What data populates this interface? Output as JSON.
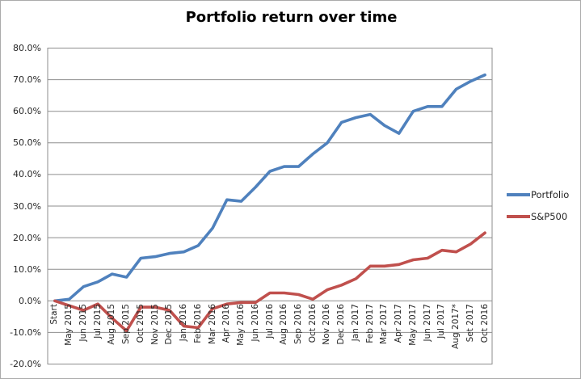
{
  "chart_title": "Portfolio return over time",
  "legend": {
    "items": [
      {
        "label": "Portfolio"
      },
      {
        "label": "S&P500"
      }
    ]
  },
  "chart_data": {
    "type": "line",
    "title": "Portfolio return over time",
    "xlabel": "",
    "ylabel": "",
    "grid": true,
    "legend_position": "right",
    "ylim": [
      -20,
      80
    ],
    "y_tick_step": 10,
    "y_tick_labels": [
      "80.0%",
      "70.0%",
      "60.0%",
      "50.0%",
      "40.0%",
      "30.0%",
      "20.0%",
      "10.0%",
      "0.0%",
      "-10.0%",
      "-20.0%"
    ],
    "y_tick_values": [
      80,
      70,
      60,
      50,
      40,
      30,
      20,
      10,
      0,
      -10,
      -20
    ],
    "categories": [
      "Start",
      "May 2015",
      "Jun 2015",
      "Jul 2015",
      "Aug 2015",
      "Sep 2015",
      "Oct 2015",
      "Nov 2015",
      "Dec 2015",
      "Jan 2016",
      "Feb 2016",
      "Mar 2016",
      "Apr 2016",
      "May 2016",
      "Jun 2016",
      "Jul 2016",
      "Aug 2016",
      "Sep 2016",
      "Oct 2016",
      "Nov 2016",
      "Dec 2016",
      "Jan 2017",
      "Feb 2017",
      "Mar 2017",
      "Apr 2017",
      "May 2017",
      "Jun 2017",
      "Jul 2017",
      "Aug 2017*",
      "Set 2017",
      "Oct 2016"
    ],
    "series": [
      {
        "name": "Portfolio",
        "color": "#4F81BD",
        "values": [
          0,
          0.5,
          4.5,
          6,
          8.5,
          7.5,
          13.5,
          14,
          15,
          15.5,
          17.5,
          23,
          32,
          31.5,
          36,
          41,
          42.5,
          42.5,
          46.5,
          50,
          56.5,
          58,
          59,
          55.5,
          53,
          60,
          61.5,
          61.5,
          67,
          69.5,
          71.5
        ]
      },
      {
        "name": "S&P500",
        "color": "#C0504D",
        "values": [
          0,
          -1.5,
          -3,
          -1,
          -5.5,
          -9.5,
          -2,
          -2,
          -3,
          -8,
          -8.5,
          -2.5,
          -1,
          -0.5,
          -0.5,
          2.5,
          2.5,
          2,
          0.5,
          3.5,
          5,
          7,
          11,
          11,
          11.5,
          13,
          13.5,
          16,
          15.5,
          18,
          21.5
        ]
      }
    ],
    "gridline_color": "#8e8e8e",
    "background_color": "#ffffff"
  }
}
